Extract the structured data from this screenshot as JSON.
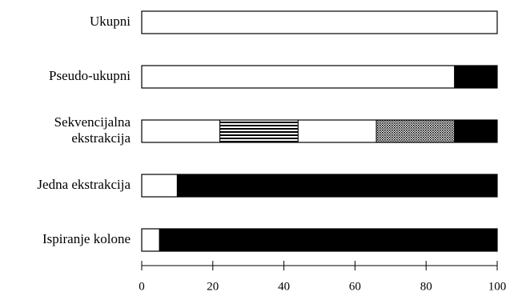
{
  "chart_data": {
    "type": "bar",
    "orientation": "horizontal",
    "stacked": true,
    "categories": [
      [
        "Ukupni"
      ],
      [
        "Pseudo-ukupni"
      ],
      [
        "Sekvencijalna",
        "ekstrakcija"
      ],
      [
        "Jedna ekstrakcija"
      ],
      [
        "Ispiranje kolone"
      ]
    ],
    "bars": [
      [
        {
          "value": 100,
          "fill": "white"
        }
      ],
      [
        {
          "value": 88,
          "fill": "white"
        },
        {
          "value": 12,
          "fill": "black"
        }
      ],
      [
        {
          "value": 22,
          "fill": "white"
        },
        {
          "value": 22,
          "fill": "horizontal-stripes"
        },
        {
          "value": 22,
          "fill": "white"
        },
        {
          "value": 22,
          "fill": "dots"
        },
        {
          "value": 12,
          "fill": "black"
        }
      ],
      [
        {
          "value": 10,
          "fill": "white"
        },
        {
          "value": 90,
          "fill": "black"
        }
      ],
      [
        {
          "value": 5,
          "fill": "white"
        },
        {
          "value": 95,
          "fill": "black"
        }
      ]
    ],
    "x_ticks": [
      0,
      20,
      40,
      60,
      80,
      100
    ],
    "xlim": [
      0,
      100
    ],
    "title": "",
    "xlabel": "",
    "ylabel": "",
    "grid": false,
    "legend": "none"
  }
}
